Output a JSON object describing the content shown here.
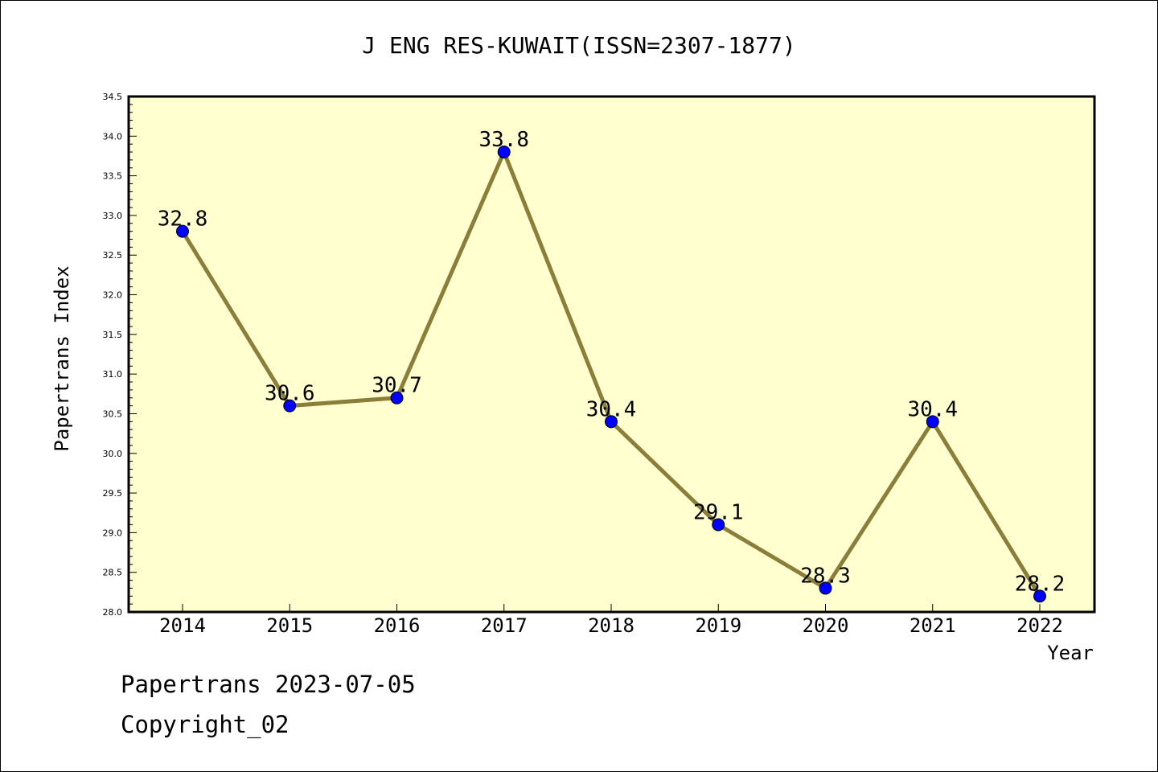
{
  "chart_data": {
    "type": "line",
    "title": "J ENG RES-KUWAIT(ISSN=2307-1877)",
    "xlabel": "Year",
    "ylabel": "Papertrans Index",
    "categories": [
      "2014",
      "2015",
      "2016",
      "2017",
      "2018",
      "2019",
      "2020",
      "2021",
      "2022"
    ],
    "series": [
      {
        "values": [
          32.8,
          30.6,
          30.7,
          33.8,
          30.4,
          29.1,
          28.3,
          30.4,
          28.2
        ],
        "point_labels": [
          "32.8",
          "30.6",
          "30.7",
          "33.8",
          "30.4",
          "29.1",
          "28.3",
          "30.4",
          "28.2"
        ]
      }
    ],
    "ylim": [
      28.0,
      34.5
    ],
    "yticks": [
      "28.0",
      "28.5",
      "29.0",
      "29.5",
      "30.0",
      "30.5",
      "31.0",
      "31.5",
      "32.0",
      "32.5",
      "33.0",
      "33.5",
      "34.0",
      "34.5"
    ],
    "grid": false,
    "colors": {
      "plot_background": "#ffffd0",
      "line": "#8b7d3a",
      "marker": "#0000ff"
    }
  },
  "footer": {
    "line1": "Papertrans 2023-07-05",
    "line2": "Copyright_02"
  }
}
